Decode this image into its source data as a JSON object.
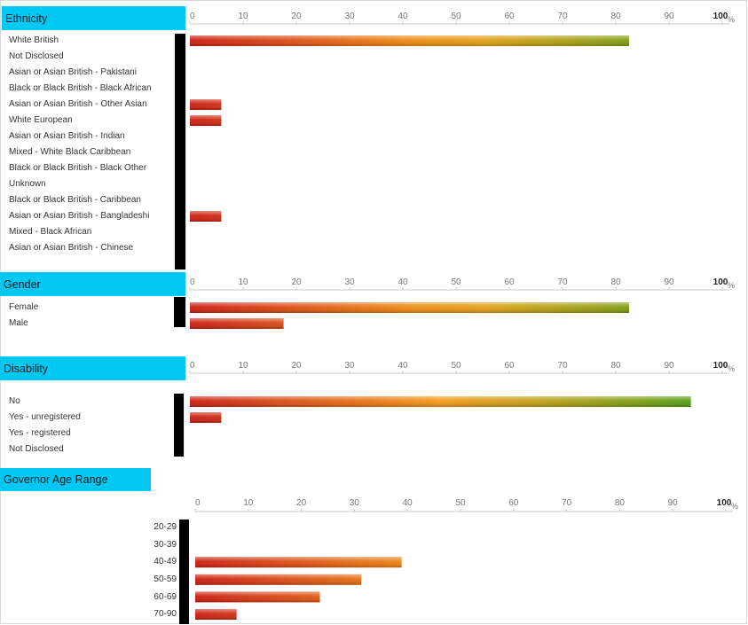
{
  "chart_data": [
    {
      "type": "bar",
      "title": "Ethnicity",
      "unit": "%",
      "xlim": [
        0,
        100
      ],
      "ticks": [
        "0",
        "10",
        "20",
        "30",
        "40",
        "50",
        "60",
        "70",
        "80",
        "90",
        "100"
      ],
      "categories": [
        "White British",
        "Not Disclosed",
        "Asian or Asian British - Pakistani",
        "Black or Black British - Black African",
        "Asian or Asian British - Other Asian",
        "White European",
        "Asian or Asian British - Indian",
        "Mixed - White Black Caribbean",
        "Black or Black British - Black Other",
        "Unknown",
        "Black or Black British - Caribbean",
        "Asian or Asian British - Bangladeshi",
        "Mixed - Black African",
        "Asian or Asian British - Chinese"
      ],
      "values": [
        82.5,
        0,
        0,
        0,
        5.9,
        5.9,
        0,
        0,
        0,
        0,
        0,
        5.9,
        0,
        0
      ]
    },
    {
      "type": "bar",
      "title": "Gender",
      "unit": "%",
      "xlim": [
        0,
        100
      ],
      "ticks": [
        "0",
        "10",
        "20",
        "30",
        "40",
        "50",
        "60",
        "70",
        "80",
        "90",
        "100"
      ],
      "categories": [
        "Female",
        "Male"
      ],
      "values": [
        82.5,
        17.6
      ]
    },
    {
      "type": "bar",
      "title": "Disability",
      "unit": "%",
      "xlim": [
        0,
        100
      ],
      "ticks": [
        "0",
        "10",
        "20",
        "30",
        "40",
        "50",
        "60",
        "70",
        "80",
        "90",
        "100"
      ],
      "categories": [
        "No",
        "Yes - unregistered",
        "Yes - registered",
        "Not Disclosed"
      ],
      "values": [
        94.1,
        5.9,
        0,
        0
      ]
    },
    {
      "type": "bar",
      "title": "Governor Age Range",
      "unit": "%",
      "xlim": [
        0,
        100
      ],
      "ticks": [
        "0",
        "10",
        "20",
        "30",
        "40",
        "50",
        "60",
        "70",
        "80",
        "90",
        "100"
      ],
      "categories": [
        "20-29",
        "30-39",
        "40-49",
        "50-59",
        "60-69",
        "70-90"
      ],
      "values": [
        0,
        0,
        38.9,
        31.3,
        23.5,
        7.8
      ]
    }
  ],
  "colors": {
    "header_bg": "#00c8f5",
    "bar_low": "#cc1b10",
    "bar_mid": "#f5a013",
    "bar_high": "#3f9a10"
  }
}
